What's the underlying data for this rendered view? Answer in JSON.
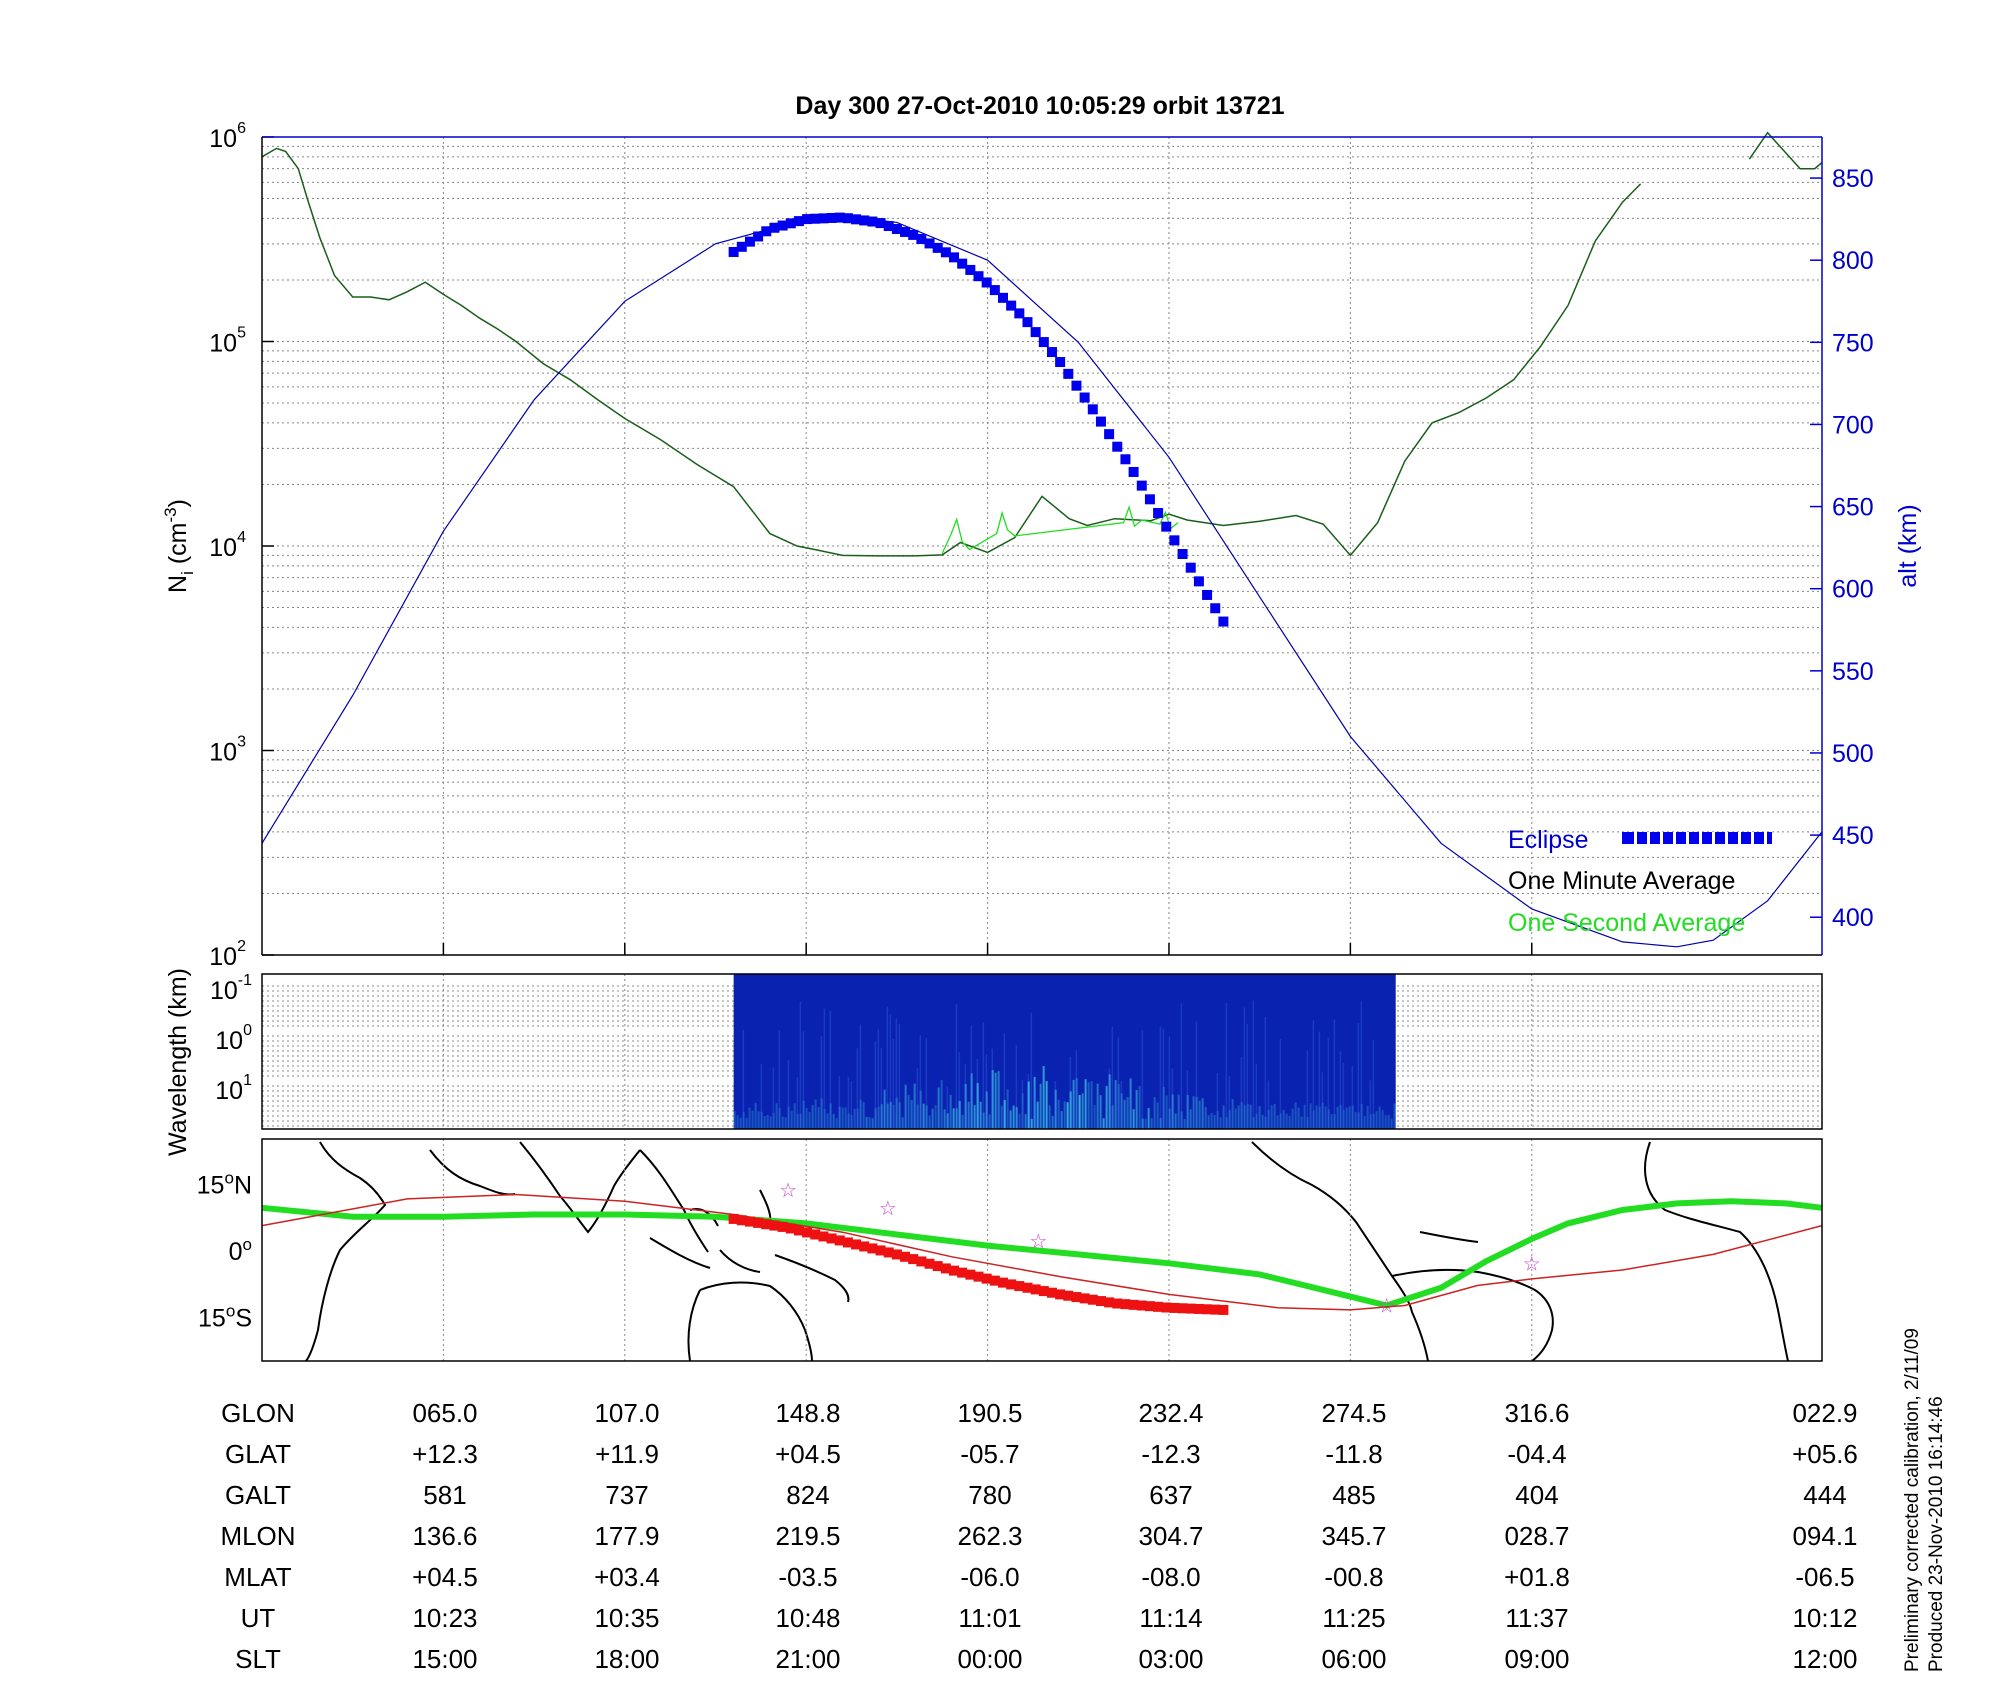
{
  "colors": {
    "eclipse": "#0000ee",
    "minute_avg": "#1a5e1a",
    "second_avg": "#22dd22",
    "altitude": "#0000aa",
    "axis": "#000000",
    "axis_right": "#0000cc",
    "map_track": "#22dd22",
    "map_dip": "#cc2222",
    "map_eclipse": "#ee1111",
    "map_star": "#cc44cc",
    "spectrogram_bg": "#0a22b0",
    "spectrogram_hot": "#44e8ee"
  },
  "chart_data": [
    {
      "type": "line",
      "title": "Day 300  27-Oct-2010 10:05:29   orbit 13721",
      "ylabel_left": {
        "base": "N",
        "sub": "i",
        "pre": " (cm",
        "sup": "-3",
        "post": ")"
      },
      "ylabel_right": "alt (km)",
      "ylog": true,
      "ylim_left": [
        100,
        1000000
      ],
      "yticks_left": [
        {
          "base": "10",
          "exp": "2"
        },
        {
          "base": "10",
          "exp": "3"
        },
        {
          "base": "10",
          "exp": "4"
        },
        {
          "base": "10",
          "exp": "5"
        },
        {
          "base": "10",
          "exp": "6"
        }
      ],
      "ylim_right": [
        377,
        875
      ],
      "yticks_right": [
        "400",
        "450",
        "500",
        "550",
        "600",
        "650",
        "700",
        "750",
        "800",
        "850"
      ],
      "xlim": [
        0,
        8.6
      ],
      "grid": true,
      "legend_position": "bottom-right",
      "legend": [
        "Eclipse",
        "One Minute Average",
        "One Second Average"
      ],
      "series": [
        {
          "name": "One Minute Average",
          "axis": "left",
          "x": [
            0,
            0.08,
            0.13,
            0.2,
            0.25,
            0.32,
            0.4,
            0.5,
            0.6,
            0.7,
            0.8,
            0.9,
            1.0,
            1.1,
            1.2,
            1.3,
            1.4,
            1.55,
            1.7,
            1.85,
            2.0,
            2.2,
            2.4,
            2.6,
            2.8,
            2.95,
            3.05,
            3.2,
            3.4,
            3.6,
            3.75,
            3.85,
            4.0,
            4.15,
            4.3,
            4.45,
            4.55,
            4.7,
            4.9,
            5.0,
            5.1,
            5.3,
            5.5,
            5.7,
            5.85,
            6.0,
            6.15,
            6.3,
            6.45,
            6.6,
            6.75,
            6.9,
            7.05,
            7.2
          ],
          "y": [
            800000,
            880000,
            850000,
            700000,
            500000,
            320000,
            210000,
            165000,
            165000,
            160000,
            175000,
            195000,
            170000,
            150000,
            130000,
            115000,
            100000,
            78000,
            65000,
            52000,
            42000,
            33000,
            25000,
            19500,
            11500,
            10000,
            9600,
            9000,
            8950,
            8950,
            9050,
            10400,
            9300,
            11000,
            17500,
            13600,
            12600,
            13600,
            13300,
            14300,
            13400,
            12600,
            13200,
            14100,
            12800,
            9000,
            13000,
            26000,
            40000,
            45000,
            53000,
            65000,
            95000,
            150000
          ]
        },
        {
          "name": "One Minute Average (continued)",
          "axis": "left",
          "x": [
            7.2,
            7.35,
            7.5,
            7.6
          ],
          "y": [
            150000,
            310000,
            480000,
            590000
          ]
        },
        {
          "name": "One Minute Average (end)",
          "axis": "left",
          "x": [
            8.2,
            8.3,
            8.42,
            8.48,
            8.56,
            8.6
          ],
          "y": [
            780000,
            1050000,
            800000,
            700000,
            700000,
            750000
          ]
        },
        {
          "name": "One Second Average",
          "axis": "left",
          "x": [
            3.75,
            3.8,
            3.83,
            3.86,
            3.9,
            4.05,
            4.08,
            4.11,
            4.15,
            4.75,
            4.78,
            4.81,
            4.85,
            4.95,
            4.98,
            5.01,
            5.05
          ],
          "y": [
            9200,
            11500,
            13500,
            10500,
            9600,
            11500,
            14500,
            12000,
            11200,
            13000,
            15500,
            12500,
            13400,
            12800,
            14600,
            12200,
            13000
          ]
        },
        {
          "name": "Altitude",
          "axis": "right",
          "x": [
            0,
            0.5,
            1.0,
            1.5,
            2.0,
            2.5,
            3.0,
            3.25,
            3.5,
            4.0,
            4.5,
            5.0,
            5.5,
            6.0,
            6.5,
            7.0,
            7.5,
            7.8,
            8.0,
            8.3,
            8.6
          ],
          "y": [
            445,
            535,
            635,
            715,
            775,
            810,
            825,
            826,
            823,
            800,
            750,
            680,
            595,
            510,
            445,
            405,
            385,
            382,
            386,
            410,
            452
          ]
        }
      ],
      "eclipse": {
        "axis": "right",
        "x": [
          2.6,
          2.8,
          3.0,
          3.2,
          3.4,
          3.6,
          3.8,
          4.0,
          4.2,
          4.4,
          4.6,
          4.8,
          5.0,
          5.2,
          5.3
        ],
        "y": [
          805,
          819,
          825,
          826,
          823,
          815,
          803,
          786,
          765,
          738,
          706,
          672,
          635,
          598,
          580
        ]
      }
    },
    {
      "type": "heatmap",
      "ylabel": "Wavelength (km)",
      "yticks": [
        {
          "base": "10",
          "exp": "-1"
        },
        {
          "base": "10",
          "exp": "0"
        },
        {
          "base": "10",
          "exp": "1"
        }
      ],
      "x_range": [
        2.6,
        6.25
      ],
      "xlim": [
        0,
        8.6
      ]
    },
    {
      "type": "line",
      "subtype": "map",
      "yticks": [
        {
          "deg": "15",
          "dir": "N",
          "value": 15
        },
        {
          "deg": "0",
          "dir": "",
          "value": 0
        },
        {
          "deg": "15",
          "dir": "S",
          "value": -15
        }
      ],
      "ylim": [
        -25,
        25
      ],
      "xlim": [
        0,
        8.6
      ],
      "series": [
        {
          "name": "Ground track",
          "x": [
            0,
            0.5,
            1.0,
            1.5,
            2.0,
            2.5,
            3.0,
            3.5,
            4.0,
            4.5,
            5.0,
            5.5,
            6.0,
            6.2,
            6.5,
            6.75,
            7.0,
            7.2,
            7.5,
            7.8,
            8.1,
            8.4,
            8.6
          ],
          "y": [
            9.5,
            7.5,
            7.5,
            8.0,
            8.0,
            7.5,
            6.0,
            3.5,
            1.0,
            -1.0,
            -3.0,
            -5.5,
            -10.5,
            -12.5,
            -8.5,
            -2.5,
            2.5,
            6.0,
            9.0,
            10.5,
            11.0,
            10.5,
            9.5
          ]
        },
        {
          "name": "Magnetic equator",
          "x": [
            0,
            0.8,
            1.4,
            2.0,
            2.6,
            3.2,
            3.8,
            4.4,
            5.0,
            5.6,
            6.0,
            6.3,
            6.7,
            7.0,
            7.5,
            8.0,
            8.6
          ],
          "y": [
            5.5,
            11.5,
            12.5,
            11.0,
            8.0,
            4.0,
            -1.5,
            -6.0,
            -10.0,
            -13.0,
            -13.5,
            -12.5,
            -8.0,
            -6.5,
            -4.5,
            -1.0,
            5.5
          ]
        }
      ],
      "eclipse_track": {
        "x": [
          2.6,
          2.9,
          3.2,
          3.5,
          3.8,
          4.1,
          4.4,
          4.7,
          5.0,
          5.3
        ],
        "y": [
          7.0,
          5.0,
          2.0,
          -1.0,
          -4.5,
          -7.5,
          -10.0,
          -12.0,
          -13.0,
          -13.5
        ]
      },
      "stars": {
        "x": [
          2.9,
          3.45,
          4.28,
          6.2,
          7.0
        ],
        "y": [
          13.5,
          9.5,
          2.0,
          -12.5,
          -3.0
        ]
      }
    }
  ],
  "table": {
    "rows": [
      {
        "label": "GLON",
        "values": [
          "065.0",
          "107.0",
          "148.8",
          "190.5",
          "232.4",
          "274.5",
          "316.6",
          "022.9"
        ]
      },
      {
        "label": "GLAT",
        "values": [
          "+12.3",
          "+11.9",
          "+04.5",
          "-05.7",
          "-12.3",
          "-11.8",
          "-04.4",
          "+05.6"
        ]
      },
      {
        "label": "GALT",
        "values": [
          "581",
          "737",
          "824",
          "780",
          "637",
          "485",
          "404",
          "444"
        ]
      },
      {
        "label": "MLON",
        "values": [
          "136.6",
          "177.9",
          "219.5",
          "262.3",
          "304.7",
          "345.7",
          "028.7",
          "094.1"
        ]
      },
      {
        "label": "MLAT",
        "values": [
          "+04.5",
          "+03.4",
          "-03.5",
          "-06.0",
          "-08.0",
          "-00.8",
          "+01.8",
          "-06.5"
        ]
      },
      {
        "label": "UT",
        "values": [
          "10:23",
          "10:35",
          "10:48",
          "11:01",
          "11:14",
          "11:25",
          "11:37",
          "10:12"
        ]
      },
      {
        "label": "SLT",
        "values": [
          "15:00",
          "18:00",
          "21:00",
          "00:00",
          "03:00",
          "06:00",
          "09:00",
          "12:00"
        ]
      }
    ]
  },
  "footnotes": [
    "Preliminary corrected calibration, 2/11/09",
    "Produced 23-Nov-2010 16:14:46"
  ]
}
